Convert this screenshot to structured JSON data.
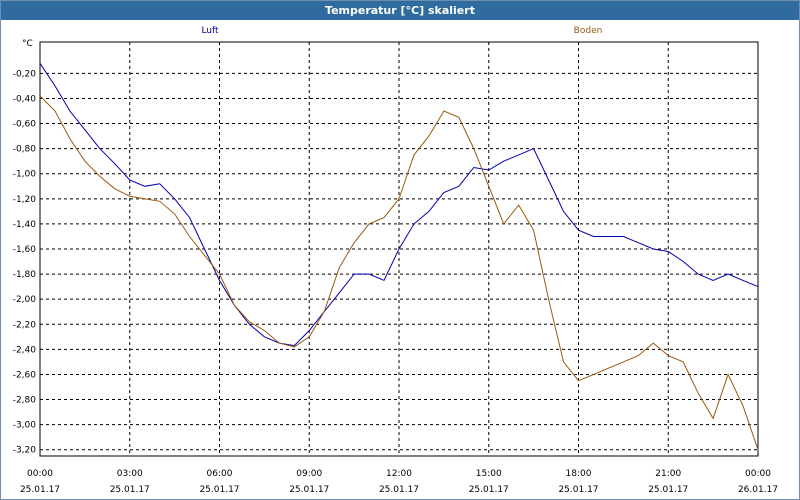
{
  "window": {
    "title": "Temperatur [°C] skaliert"
  },
  "colors": {
    "luft": "#0000aa",
    "boden": "#9a5a10",
    "grid": "#000000",
    "titlebar": "#2f6b9e"
  },
  "chart_data": {
    "type": "line",
    "title": "Temperatur [°C] skaliert",
    "ylabel": "°C",
    "xlabel": "",
    "ylim": [
      -3.25,
      0.05
    ],
    "xlim": [
      0,
      24
    ],
    "grid": true,
    "legend_position": "top",
    "y_ticks": [
      "-0,20",
      "-0,40",
      "-0,60",
      "-0,80",
      "-1,00",
      "-1,20",
      "-1,40",
      "-1,60",
      "-1,80",
      "-2,00",
      "-2,20",
      "-2,40",
      "-2,60",
      "-2,80",
      "-3,00",
      "-3,20"
    ],
    "x_ticks": [
      {
        "time": "00:00",
        "date": "25.01.17"
      },
      {
        "time": "03:00",
        "date": "25.01.17"
      },
      {
        "time": "06:00",
        "date": "25.01.17"
      },
      {
        "time": "09:00",
        "date": "25.01.17"
      },
      {
        "time": "12:00",
        "date": "25.01.17"
      },
      {
        "time": "15:00",
        "date": "25.01.17"
      },
      {
        "time": "18:00",
        "date": "25.01.17"
      },
      {
        "time": "21:00",
        "date": "25.01.17"
      },
      {
        "time": "00:00",
        "date": "26.01.17"
      }
    ],
    "series": [
      {
        "name": "Luft",
        "x": [
          0,
          0.5,
          1,
          1.5,
          2,
          2.5,
          3,
          3.5,
          4,
          4.5,
          5,
          5.5,
          6,
          6.5,
          7,
          7.5,
          8,
          8.5,
          9,
          9.5,
          10,
          10.5,
          11,
          11.5,
          12,
          12.5,
          13,
          13.5,
          14,
          14.5,
          15,
          15.5,
          16,
          16.5,
          17,
          17.5,
          18,
          18.5,
          19,
          19.5,
          20,
          20.5,
          21,
          21.5,
          22,
          22.5,
          23,
          23.5,
          24
        ],
        "values": [
          -0.12,
          -0.3,
          -0.5,
          -0.65,
          -0.8,
          -0.92,
          -1.05,
          -1.1,
          -1.08,
          -1.2,
          -1.35,
          -1.6,
          -1.85,
          -2.05,
          -2.2,
          -2.3,
          -2.35,
          -2.37,
          -2.25,
          -2.1,
          -1.95,
          -1.8,
          -1.8,
          -1.85,
          -1.6,
          -1.4,
          -1.3,
          -1.15,
          -1.1,
          -0.95,
          -0.97,
          -0.9,
          -0.85,
          -0.8,
          -1.05,
          -1.3,
          -1.45,
          -1.5,
          -1.5,
          -1.5,
          -1.55,
          -1.6,
          -1.62,
          -1.7,
          -1.8,
          -1.85,
          -1.8,
          -1.85,
          -1.9
        ]
      },
      {
        "name": "Boden",
        "x": [
          0,
          0.5,
          1,
          1.5,
          2,
          2.5,
          3,
          3.5,
          4,
          4.5,
          5,
          5.5,
          6,
          6.5,
          7,
          7.5,
          8,
          8.5,
          9,
          9.5,
          10,
          10.5,
          11,
          11.5,
          12,
          12.5,
          13,
          13.5,
          14,
          14.5,
          15,
          15.5,
          16,
          16.5,
          17,
          17.5,
          18,
          18.5,
          19,
          19.5,
          20,
          20.5,
          21,
          21.5,
          22,
          22.5,
          23,
          23.5,
          24
        ],
        "values": [
          -0.38,
          -0.5,
          -0.72,
          -0.9,
          -1.02,
          -1.12,
          -1.18,
          -1.2,
          -1.22,
          -1.32,
          -1.5,
          -1.65,
          -1.8,
          -2.05,
          -2.18,
          -2.25,
          -2.35,
          -2.38,
          -2.3,
          -2.1,
          -1.75,
          -1.55,
          -1.4,
          -1.35,
          -1.2,
          -0.85,
          -0.7,
          -0.5,
          -0.55,
          -0.8,
          -1.1,
          -1.4,
          -1.25,
          -1.45,
          -2.0,
          -2.5,
          -2.65,
          -2.6,
          -2.55,
          -2.5,
          -2.45,
          -2.35,
          -2.45,
          -2.5,
          -2.75,
          -2.95,
          -2.6,
          -2.85,
          -3.2
        ]
      }
    ]
  }
}
